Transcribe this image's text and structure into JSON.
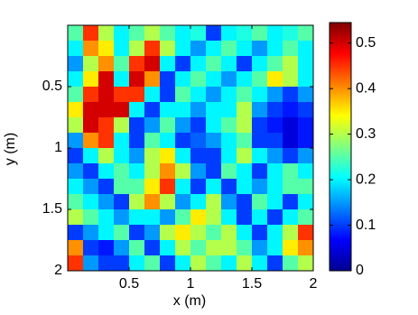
{
  "chart_data": {
    "type": "heatmap",
    "xlabel": "x (m)",
    "ylabel": "y (m)",
    "colormap": "jet",
    "xlim": [
      0,
      2
    ],
    "ylim": [
      0,
      2
    ],
    "y_reversed": true,
    "xticks": [
      0.5,
      1,
      1.5,
      2
    ],
    "yticks": [
      0.5,
      1,
      1.5,
      2
    ],
    "clim": [
      0,
      0.545
    ],
    "cticks": [
      0,
      0.1,
      0.2,
      0.3,
      0.4,
      0.5
    ],
    "z": [
      [
        0.25,
        0.45,
        0.3,
        0.2,
        0.25,
        0.3,
        0.25,
        0.2,
        0.22,
        0.1,
        0.2,
        0.22,
        0.25,
        0.2,
        0.22,
        0.25
      ],
      [
        0.2,
        0.4,
        0.35,
        0.2,
        0.3,
        0.45,
        0.3,
        0.2,
        0.15,
        0.2,
        0.25,
        0.2,
        0.15,
        0.2,
        0.25,
        0.2
      ],
      [
        0.15,
        0.3,
        0.4,
        0.25,
        0.45,
        0.5,
        0.2,
        0.1,
        0.2,
        0.25,
        0.2,
        0.1,
        0.2,
        0.25,
        0.3,
        0.2
      ],
      [
        0.2,
        0.35,
        0.5,
        0.2,
        0.5,
        0.4,
        0.1,
        0.2,
        0.25,
        0.2,
        0.15,
        0.2,
        0.25,
        0.35,
        0.3,
        0.2
      ],
      [
        0.25,
        0.45,
        0.5,
        0.45,
        0.45,
        0.2,
        0.1,
        0.25,
        0.2,
        0.15,
        0.2,
        0.25,
        0.2,
        0.15,
        0.1,
        0.15
      ],
      [
        0.35,
        0.5,
        0.5,
        0.5,
        0.2,
        0.1,
        0.2,
        0.2,
        0.15,
        0.2,
        0.2,
        0.3,
        0.15,
        0.1,
        0.08,
        0.1
      ],
      [
        0.3,
        0.5,
        0.45,
        0.3,
        0.1,
        0.15,
        0.25,
        0.15,
        0.1,
        0.2,
        0.25,
        0.3,
        0.1,
        0.08,
        0.05,
        0.08
      ],
      [
        0.15,
        0.4,
        0.45,
        0.2,
        0.1,
        0.25,
        0.2,
        0.1,
        0.12,
        0.15,
        0.2,
        0.25,
        0.1,
        0.1,
        0.05,
        0.08
      ],
      [
        0.1,
        0.2,
        0.3,
        0.2,
        0.15,
        0.3,
        0.35,
        0.2,
        0.1,
        0.1,
        0.2,
        0.3,
        0.2,
        0.15,
        0.1,
        0.15
      ],
      [
        0.15,
        0.1,
        0.2,
        0.25,
        0.2,
        0.3,
        0.4,
        0.3,
        0.15,
        0.1,
        0.25,
        0.2,
        0.1,
        0.2,
        0.25,
        0.2
      ],
      [
        0.2,
        0.15,
        0.1,
        0.25,
        0.25,
        0.35,
        0.45,
        0.2,
        0.1,
        0.2,
        0.1,
        0.2,
        0.15,
        0.2,
        0.25,
        0.25
      ],
      [
        0.25,
        0.2,
        0.15,
        0.1,
        0.3,
        0.4,
        0.3,
        0.15,
        0.2,
        0.3,
        0.15,
        0.1,
        0.25,
        0.2,
        0.1,
        0.2
      ],
      [
        0.3,
        0.25,
        0.2,
        0.15,
        0.2,
        0.2,
        0.15,
        0.25,
        0.35,
        0.3,
        0.2,
        0.1,
        0.2,
        0.1,
        0.2,
        0.25
      ],
      [
        0.1,
        0.15,
        0.2,
        0.25,
        0.1,
        0.15,
        0.3,
        0.35,
        0.3,
        0.25,
        0.3,
        0.2,
        0.1,
        0.2,
        0.3,
        0.45
      ],
      [
        0.4,
        0.1,
        0.08,
        0.15,
        0.25,
        0.1,
        0.2,
        0.3,
        0.25,
        0.3,
        0.3,
        0.25,
        0.15,
        0.2,
        0.35,
        0.4
      ],
      [
        0.45,
        0.15,
        0.1,
        0.1,
        0.2,
        0.25,
        0.1,
        0.2,
        0.3,
        0.25,
        0.2,
        0.3,
        0.2,
        0.1,
        0.25,
        0.3
      ]
    ]
  }
}
